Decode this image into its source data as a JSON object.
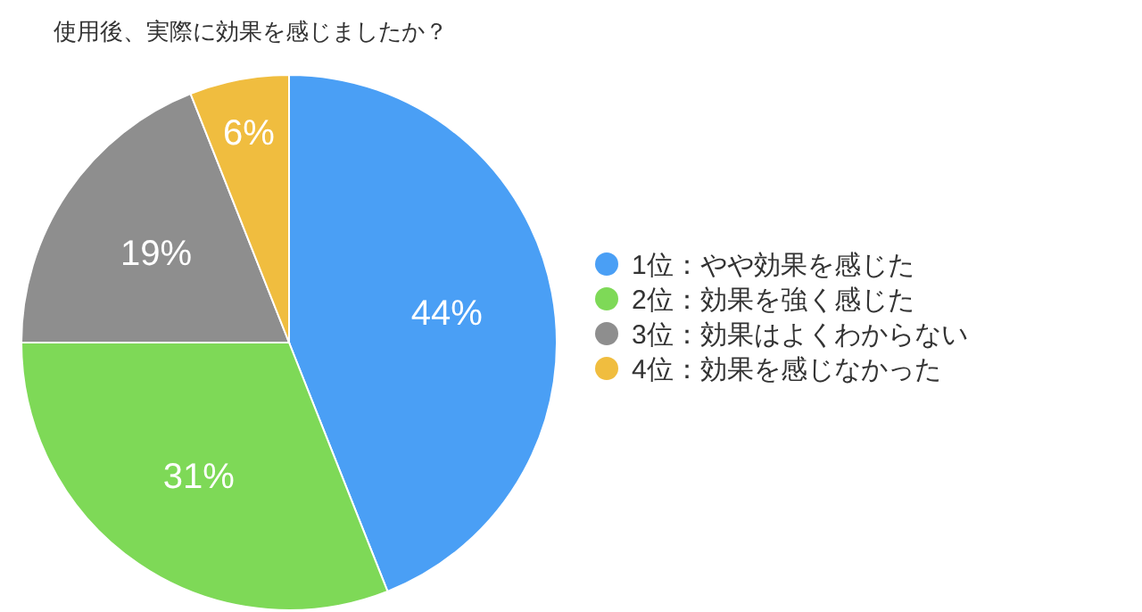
{
  "chart_data": {
    "type": "pie",
    "title": "使用後、実際に効果を感じましたか？",
    "categories": [
      "1位：やや効果を感じた",
      "2位：効果を強く感じた",
      "3位：効果はよくわからない",
      "4位：効果を感じなかった"
    ],
    "values": [
      44,
      31,
      19,
      6
    ],
    "colors": [
      "#4a9ff5",
      "#7ed957",
      "#8e8e8e",
      "#f0bd3f"
    ],
    "value_labels": [
      "44%",
      "31%",
      "19%",
      "6%"
    ],
    "legend": "right"
  }
}
